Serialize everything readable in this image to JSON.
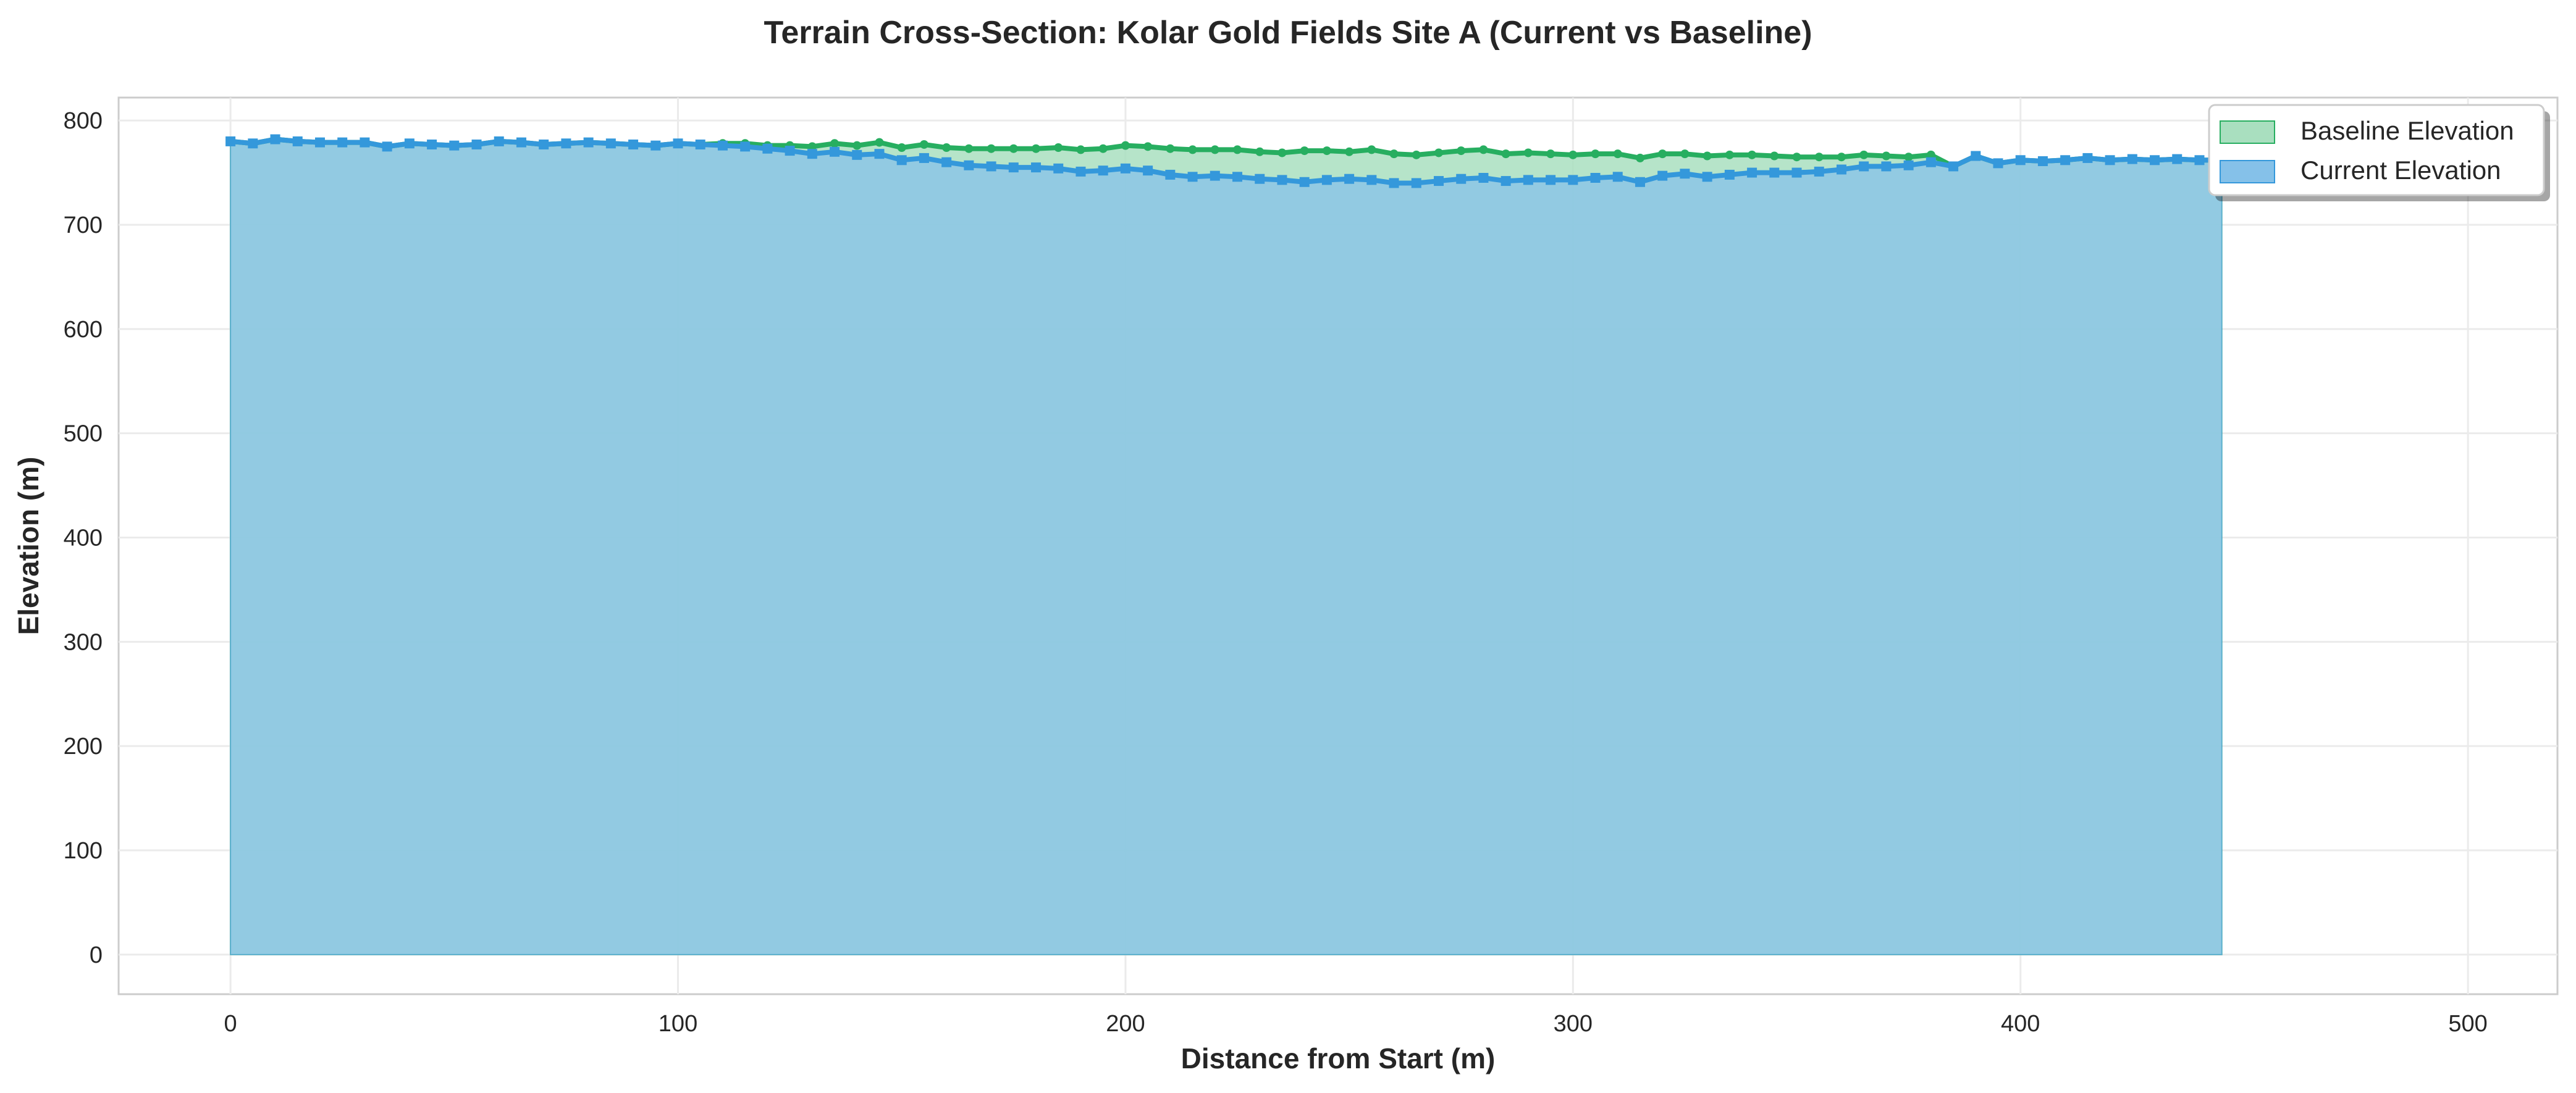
{
  "chart_data": {
    "type": "area",
    "title": "Terrain Cross-Section: Kolar Gold Fields Site A (Current vs Baseline)",
    "xlabel": "Distance from Start (m)",
    "ylabel": "Elevation (m)",
    "xlim": [
      -25,
      520
    ],
    "ylim": [
      -38,
      822
    ],
    "x_ticks": [
      0,
      100,
      200,
      300,
      400,
      500
    ],
    "y_ticks": [
      0,
      100,
      200,
      300,
      400,
      500,
      600,
      700,
      800
    ],
    "grid": true,
    "legend_position": "top-right",
    "x_step": 5,
    "series": [
      {
        "name": "Baseline Elevation",
        "color": "#27ae60",
        "fill": "#a9dfbf",
        "values": [
          780,
          778,
          782,
          780,
          779,
          779,
          779,
          775,
          778,
          777,
          776,
          777,
          780,
          779,
          777,
          778,
          779,
          778,
          777,
          776,
          778,
          777,
          778,
          778,
          776,
          776,
          775,
          778,
          776,
          779,
          774,
          777,
          774,
          773,
          773,
          773,
          773,
          774,
          772,
          773,
          776,
          775,
          773,
          772,
          772,
          772,
          770,
          769,
          771,
          771,
          770,
          772,
          768,
          767,
          769,
          771,
          772,
          768,
          769,
          768,
          767,
          768,
          768,
          764,
          768,
          768,
          766,
          767,
          767,
          766,
          765,
          765,
          765,
          767,
          766,
          765,
          767,
          756,
          766,
          759,
          762,
          761,
          762,
          764,
          762,
          763,
          762,
          763,
          762,
          762
        ]
      },
      {
        "name": "Current Elevation",
        "color": "#3498db",
        "fill": "#85c1e9",
        "values": [
          780,
          778,
          782,
          780,
          779,
          779,
          779,
          775,
          778,
          777,
          776,
          777,
          780,
          779,
          777,
          778,
          779,
          778,
          777,
          776,
          778,
          777,
          776,
          775,
          773,
          771,
          768,
          770,
          767,
          768,
          762,
          764,
          760,
          757,
          756,
          755,
          755,
          754,
          751,
          752,
          754,
          752,
          748,
          746,
          747,
          746,
          744,
          743,
          741,
          743,
          744,
          743,
          740,
          740,
          742,
          744,
          745,
          742,
          743,
          743,
          743,
          745,
          746,
          741,
          747,
          749,
          746,
          748,
          750,
          750,
          750,
          751,
          753,
          756,
          756,
          757,
          760,
          756,
          766,
          759,
          762,
          761,
          762,
          764,
          762,
          763,
          762,
          763,
          762,
          762
        ]
      }
    ]
  }
}
